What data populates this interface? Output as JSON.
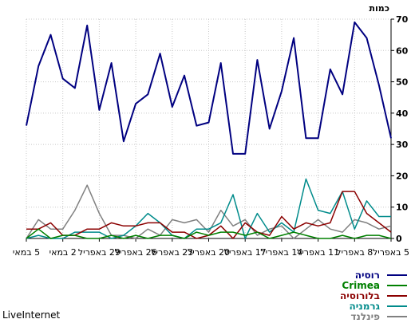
{
  "chart_data": {
    "type": "line",
    "ylabel": "כמות",
    "ylim": [
      0,
      70
    ],
    "yticks": [
      0,
      10,
      20,
      30,
      40,
      50,
      60,
      70
    ],
    "grid": true,
    "legend_position": "bottom-right",
    "x": [
      "5 במאי",
      "4 במאי",
      "3 במאי",
      "2 במאי",
      "1 במאי",
      "30 באפריל",
      "29 באפריל",
      "28 באפריל",
      "27 באפריל",
      "26 באפריל",
      "25 באפריל",
      "24 באפריל",
      "23 באפריל",
      "22 באפריל",
      "21 באפריל",
      "20 באפריל",
      "19 באפריל",
      "18 באפריל",
      "17 באפריל",
      "16 באפריל",
      "15 באפריל",
      "14 באפריל",
      "13 באפריל",
      "12 באפריל",
      "11 באפריל",
      "10 באפריל",
      "9 באפריל",
      "8 באפריל",
      "7 באפריל",
      "6 באפריל",
      "5 באפריל"
    ],
    "xtick_labels": [
      {
        "index": 0,
        "label": "5 במאי"
      },
      {
        "index": 3,
        "label": "2 במאי"
      },
      {
        "index": 6,
        "label": "29 באפריל"
      },
      {
        "index": 9,
        "label": "26 באפריל"
      },
      {
        "index": 12,
        "label": "23 באפריל"
      },
      {
        "index": 15,
        "label": "20 באפריל"
      },
      {
        "index": 18,
        "label": "17 באפריל"
      },
      {
        "index": 21,
        "label": "14 באפריל"
      },
      {
        "index": 24,
        "label": "11 באפריל"
      },
      {
        "index": 27,
        "label": "8 באפריל"
      },
      {
        "index": 30,
        "label": "5 באפריל"
      }
    ],
    "series": [
      {
        "name": "רוסיה",
        "color": "#000080",
        "values": [
          36,
          55,
          65,
          51,
          48,
          68,
          41,
          56,
          31,
          43,
          46,
          59,
          42,
          52,
          36,
          37,
          56,
          27,
          27,
          57,
          35,
          47,
          64,
          32,
          32,
          54,
          46,
          69,
          64,
          49,
          32
        ]
      },
      {
        "name": "Crimea",
        "color": "#008000",
        "values": [
          0,
          3,
          0,
          1,
          1,
          0,
          0,
          1,
          0,
          1,
          0,
          1,
          1,
          0,
          2,
          1,
          2,
          2,
          1,
          2,
          0,
          1,
          2,
          1,
          0,
          0,
          1,
          0,
          1,
          1,
          0
        ]
      },
      {
        "name": "בלורוסיה",
        "color": "#8b0000",
        "values": [
          3,
          3,
          5,
          1,
          1,
          3,
          3,
          5,
          4,
          4,
          5,
          5,
          2,
          2,
          0,
          1,
          4,
          0,
          5,
          2,
          1,
          7,
          3,
          5,
          4,
          5,
          15,
          15,
          8,
          5,
          2
        ]
      },
      {
        "name": "גרמניה",
        "color": "#008b8b",
        "values": [
          0,
          1,
          0,
          0,
          2,
          2,
          2,
          0,
          1,
          4,
          8,
          5,
          1,
          0,
          3,
          3,
          5,
          14,
          0,
          8,
          2,
          5,
          2,
          19,
          9,
          8,
          15,
          3,
          12,
          7,
          7
        ]
      },
      {
        "name": "פינלנד",
        "color": "#808080",
        "values": [
          0,
          6,
          3,
          3,
          9,
          17,
          8,
          1,
          1,
          0,
          3,
          1,
          6,
          5,
          6,
          2,
          9,
          4,
          6,
          1,
          3,
          4,
          0,
          3,
          6,
          3,
          2,
          6,
          5,
          3,
          4
        ]
      }
    ]
  },
  "branding": {
    "label": "LiveInternet"
  }
}
